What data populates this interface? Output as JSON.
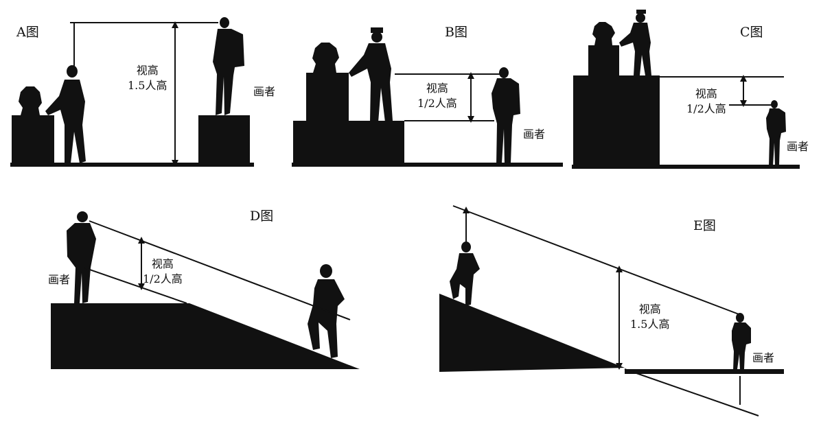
{
  "panels": [
    {
      "id": "A",
      "title": "A图",
      "height_label": [
        "视高",
        "1.5人高"
      ],
      "artist_label": "画者"
    },
    {
      "id": "B",
      "title": "B图",
      "height_label": [
        "视高",
        "1/2人高"
      ],
      "artist_label": "画者"
    },
    {
      "id": "C",
      "title": "C图",
      "height_label": [
        "视高",
        "1/2人高"
      ],
      "artist_label": "画者"
    },
    {
      "id": "D",
      "title": "D图",
      "height_label": [
        "视高",
        "1/2人高"
      ],
      "artist_label": "画者"
    },
    {
      "id": "E",
      "title": "E图",
      "height_label": [
        "视高",
        "1.5人高"
      ],
      "artist_label": "画者"
    }
  ]
}
